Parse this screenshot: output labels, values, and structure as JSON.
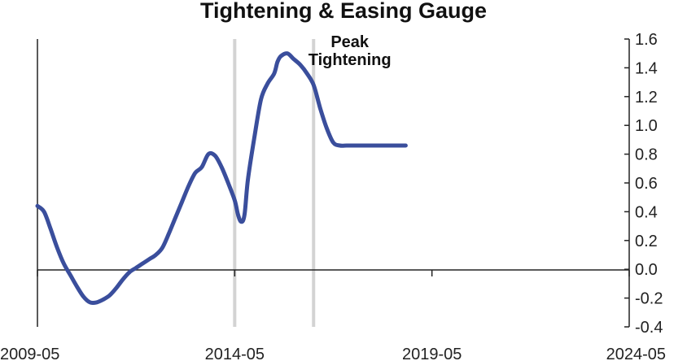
{
  "chart_data": {
    "type": "line",
    "title": "Tightening & Easing Gauge",
    "xlabel": "",
    "ylabel": "",
    "x_ticks": [
      "2009-05",
      "2014-05",
      "2019-05",
      "2024-05"
    ],
    "xlim": [
      "2009-05",
      "2024-05"
    ],
    "ylim": [
      -0.4,
      1.6
    ],
    "y_ticks": [
      "1.6",
      "1.4",
      "1.2",
      "1.0",
      "0.8",
      "0.6",
      "0.4",
      "0.2",
      "0.0",
      "-0.2",
      "-0.4"
    ],
    "y_axis_side": "right",
    "grid": false,
    "legend": "none",
    "line_color": "#3A4E9C",
    "vline_color": "#D3D3D3",
    "vertical_lines": [
      "2014-05",
      "2016-05"
    ],
    "annotation": {
      "lines": [
        "Peak",
        "Tightening"
      ],
      "x": "2017-04",
      "y": 1.42
    },
    "series": [
      {
        "x": [
          "2009-05",
          "2009-07",
          "2009-09",
          "2009-11",
          "2010-01",
          "2010-03",
          "2010-05",
          "2010-07",
          "2010-09",
          "2010-11",
          "2011-01",
          "2011-03",
          "2011-05",
          "2011-07",
          "2011-09",
          "2011-11",
          "2012-01",
          "2012-03",
          "2012-05",
          "2012-07",
          "2012-09",
          "2012-11",
          "2013-01",
          "2013-03",
          "2013-05",
          "2013-07",
          "2013-09",
          "2013-11",
          "2014-01",
          "2014-03",
          "2014-05",
          "2014-06",
          "2014-07",
          "2014-08",
          "2014-09",
          "2014-11",
          "2015-01",
          "2015-03",
          "2015-05",
          "2015-06",
          "2015-07",
          "2015-09",
          "2015-11",
          "2016-01",
          "2016-03",
          "2016-05",
          "2016-07",
          "2016-09",
          "2016-11",
          "2017-01",
          "2017-03",
          "2017-05",
          "2017-07",
          "2017-09",
          "2017-11",
          "2018-01",
          "2018-03",
          "2018-05",
          "2018-07",
          "2018-09"
        ],
        "values": [
          0.44,
          0.4,
          0.28,
          0.15,
          0.04,
          -0.04,
          -0.12,
          -0.19,
          -0.23,
          -0.23,
          -0.21,
          -0.18,
          -0.13,
          -0.07,
          -0.02,
          0.01,
          0.04,
          0.07,
          0.1,
          0.15,
          0.25,
          0.36,
          0.47,
          0.58,
          0.67,
          0.71,
          0.8,
          0.79,
          0.71,
          0.6,
          0.48,
          0.38,
          0.33,
          0.38,
          0.62,
          0.92,
          1.18,
          1.29,
          1.36,
          1.44,
          1.48,
          1.5,
          1.46,
          1.42,
          1.36,
          1.28,
          1.12,
          0.98,
          0.88,
          0.86,
          0.86,
          0.86,
          0.86,
          0.86,
          0.86,
          0.86,
          0.86,
          0.86,
          0.86,
          0.86
        ]
      }
    ]
  }
}
